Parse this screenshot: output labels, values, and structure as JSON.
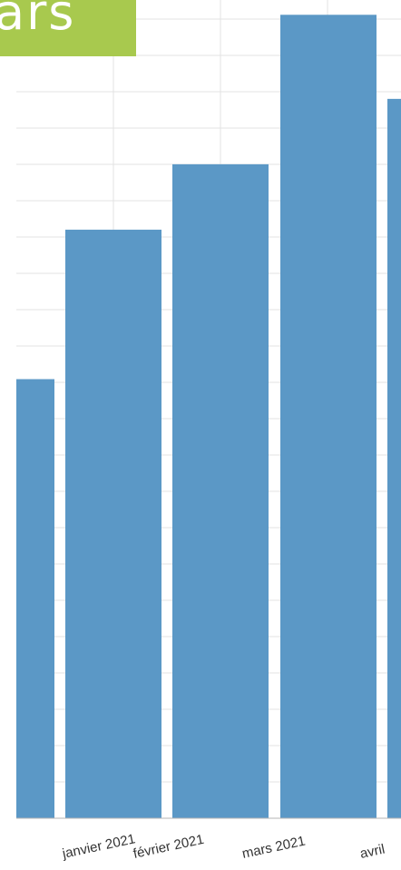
{
  "banner": {
    "text": "ars"
  },
  "colors": {
    "bar": "#5b98c6",
    "grid": "#e3e3e3",
    "banner": "#a8c94e",
    "axis": "#b5b5b5"
  },
  "chart_data": {
    "type": "bar",
    "title": "",
    "xlabel": "",
    "ylabel": "",
    "categories": [
      "",
      "janvier 2021",
      "février 2021",
      "mars 2021",
      "avril"
    ],
    "values": [
      47,
      63,
      70,
      86,
      77
    ],
    "ylim": [
      0,
      87
    ],
    "grid": true,
    "legend": "none"
  }
}
